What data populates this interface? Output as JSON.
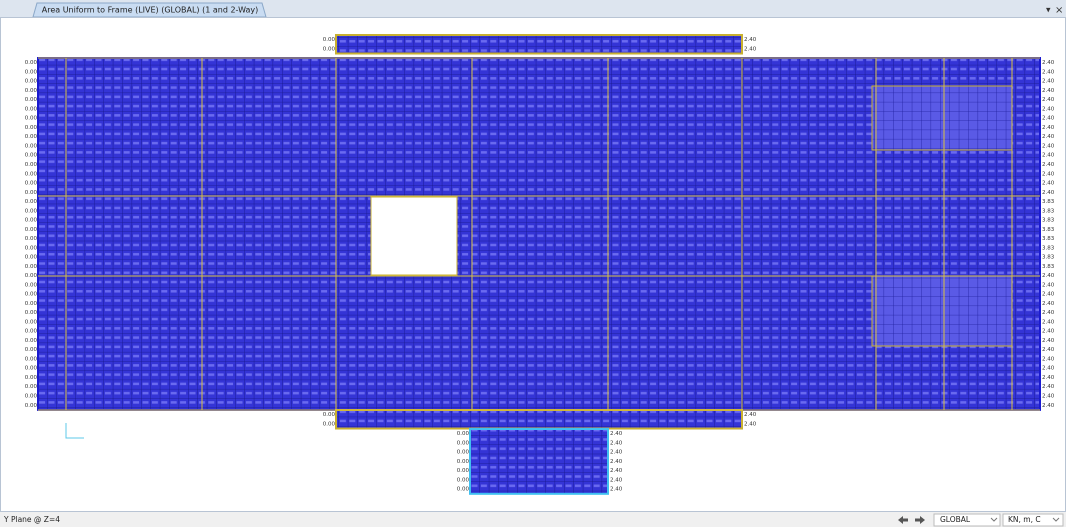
{
  "tab": {
    "title": "Area Uniform to Frame (LIVE) (GLOBAL) (1 and 2-Way)",
    "menu": "▾",
    "close": "×"
  },
  "status": {
    "plane": "Y Plane @ Z=4",
    "coord": "GLOBAL",
    "units": "KN, m, C"
  },
  "plan": {
    "top": {
      "rows": [
        [
          "0.00",
          "2.40"
        ],
        [
          "0.00",
          "2.40"
        ]
      ]
    },
    "main": {
      "rows": [
        [
          "0.00",
          "2.40"
        ],
        [
          "0.00",
          "2.40"
        ],
        [
          "0.00",
          "2.40"
        ],
        [
          "0.00",
          "2.40"
        ],
        [
          "0.00",
          "2.40"
        ],
        [
          "0.00",
          "2.40"
        ],
        [
          "0.00",
          "2.40"
        ],
        [
          "0.00",
          "2.40"
        ],
        [
          "0.00",
          "2.40"
        ],
        [
          "0.00",
          "2.40"
        ],
        [
          "0.00",
          "2.40"
        ],
        [
          "0.00",
          "2.40"
        ],
        [
          "0.00",
          "2.40"
        ],
        [
          "0.00",
          "2.40"
        ],
        [
          "0.00",
          "2.40"
        ],
        [
          "0.00",
          "3.83"
        ],
        [
          "0.00",
          "3.83"
        ],
        [
          "0.00",
          "3.83"
        ],
        [
          "0.00",
          "3.83"
        ],
        [
          "0.00",
          "3.83"
        ],
        [
          "0.00",
          "3.83"
        ],
        [
          "0.00",
          "3.83"
        ],
        [
          "0.00",
          "3.83"
        ],
        [
          "0.00",
          "2.40"
        ],
        [
          "0.00",
          "2.40"
        ],
        [
          "0.00",
          "2.40"
        ],
        [
          "0.00",
          "2.40"
        ],
        [
          "0.00",
          "2.40"
        ],
        [
          "0.00",
          "2.40"
        ],
        [
          "0.00",
          "2.40"
        ],
        [
          "0.00",
          "2.40"
        ],
        [
          "0.00",
          "2.40"
        ],
        [
          "0.00",
          "2.40"
        ],
        [
          "0.00",
          "2.40"
        ],
        [
          "0.00",
          "2.40"
        ],
        [
          "0.00",
          "2.40"
        ],
        [
          "0.00",
          "2.40"
        ],
        [
          "0.00",
          "2.40"
        ]
      ]
    },
    "bottom": {
      "rows": [
        [
          "0.00",
          "2.40"
        ],
        [
          "0.00",
          "2.40"
        ]
      ]
    },
    "tail": {
      "rows": [
        [
          "0.00",
          "2.40"
        ],
        [
          "0.00",
          "2.40"
        ],
        [
          "0.00",
          "2.40"
        ],
        [
          "0.00",
          "2.40"
        ],
        [
          "0.00",
          "2.40"
        ],
        [
          "0.00",
          "2.40"
        ],
        [
          "0.00",
          "2.40"
        ]
      ]
    }
  }
}
